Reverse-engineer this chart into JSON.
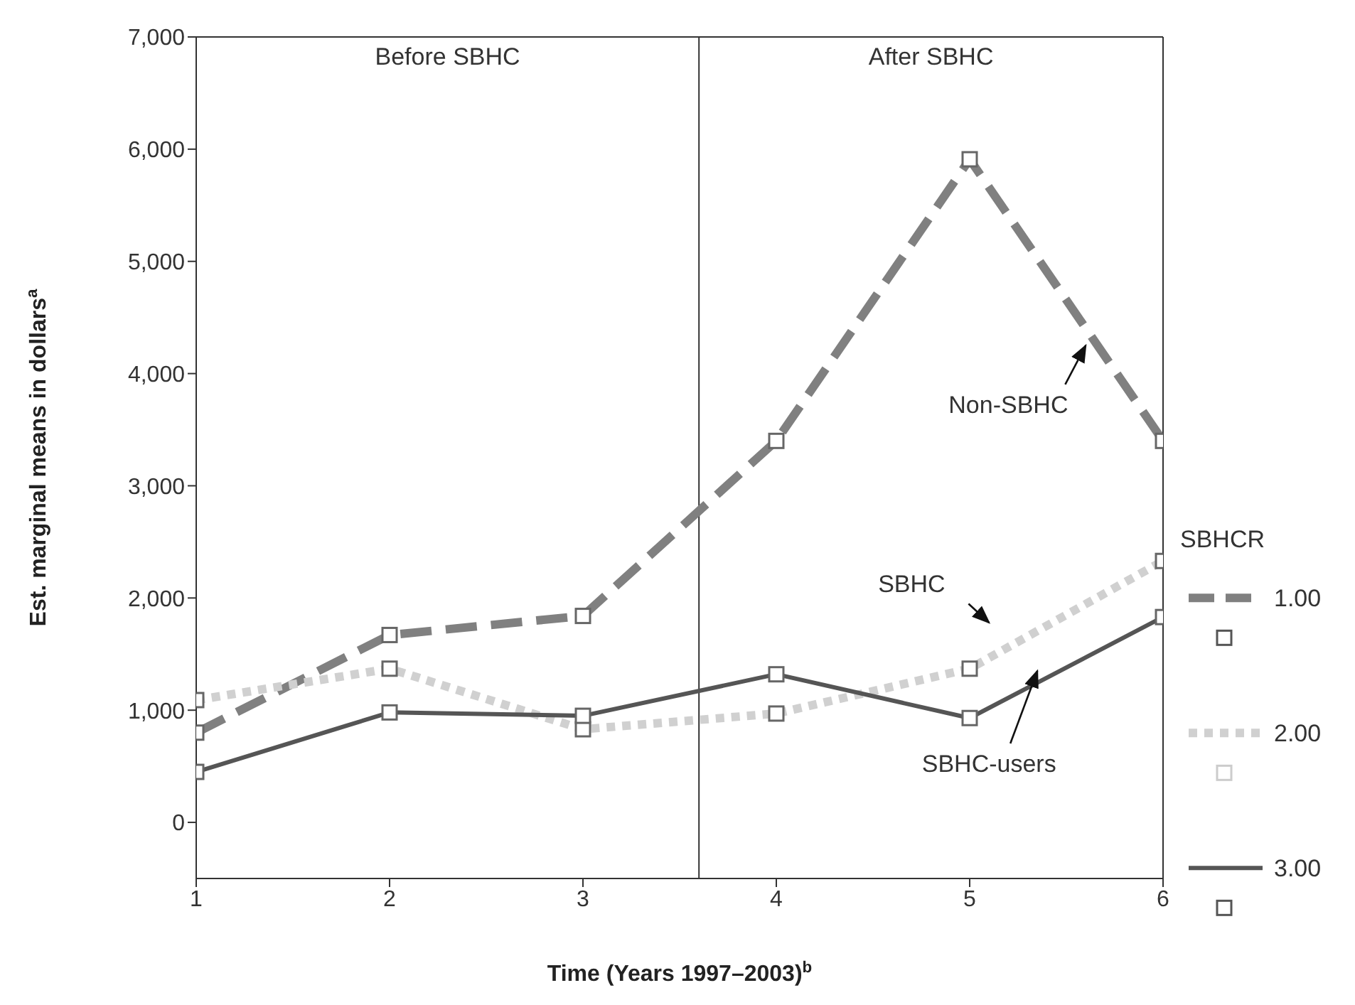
{
  "chart_data": {
    "type": "line",
    "xlabel": "Time (Years 1997–2003)$^{b}$",
    "ylabel": "Est. marginal means in dollars$^{a}$",
    "legend_title": "SBHCR",
    "legend": "right",
    "marker": "square",
    "x": [
      1,
      2,
      3,
      4,
      5,
      6
    ],
    "xlim": [
      1,
      6
    ],
    "xticks": [
      1,
      2,
      3,
      4,
      5,
      6
    ],
    "ylim": [
      -500,
      7000
    ],
    "yticks": [
      0,
      {
        "value": 1000,
        "label": "1,000"
      },
      {
        "value": 2000,
        "label": "2,000"
      },
      {
        "value": 3000,
        "label": "3,000"
      },
      {
        "value": 4000,
        "label": "4,000"
      },
      {
        "value": 5000,
        "label": "5,000"
      },
      {
        "value": 6000,
        "label": "6,000"
      },
      {
        "value": 7000,
        "label": "7,000"
      }
    ],
    "series": [
      {
        "name": "1.00",
        "color": "#808080",
        "line_style": "dashed",
        "values": [
          800,
          1670,
          1840,
          3400,
          5910,
          3400
        ]
      },
      {
        "name": "2.00",
        "color": "#d0d0d0",
        "line_style": "dotted",
        "values": [
          1090,
          1370,
          830,
          970,
          1370,
          2330
        ]
      },
      {
        "name": "3.00",
        "color": "#555555",
        "line_style": "solid",
        "values": [
          450,
          980,
          950,
          1320,
          930,
          1830
        ]
      }
    ],
    "ref_lines": [
      {
        "axis": "x",
        "value": 3.6,
        "color": "#333333"
      }
    ],
    "annotations": [
      "Before SBHC",
      "After SBHC",
      "Non-SBHC",
      "SBHC",
      "SBHC-users"
    ]
  }
}
